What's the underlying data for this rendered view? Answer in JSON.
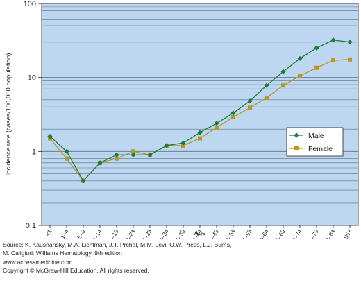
{
  "chart_data": {
    "type": "line",
    "y_scale": "log",
    "ylim": [
      0.1,
      100
    ],
    "y_ticks": [
      0.1,
      1,
      10,
      100
    ],
    "y_tick_labels": [
      "0.1",
      "1",
      "10",
      "100"
    ],
    "ylabel": "Incidence rate (cases/100,000 population)",
    "xlabel": "Age",
    "categories": [
      "<1",
      "1–4",
      "5–9",
      "10–14",
      "15–19",
      "20–24",
      "25–29",
      "30–34",
      "35–39",
      "40–44",
      "45–49",
      "50–54",
      "55–59",
      "60–64",
      "65–69",
      "70–74",
      "75–79",
      "80–84",
      "85+"
    ],
    "series": [
      {
        "name": "Male",
        "color": "#1e7a3c",
        "marker": "diamond",
        "values": [
          1.6,
          1.0,
          0.4,
          0.7,
          0.9,
          0.9,
          0.9,
          1.2,
          1.3,
          1.8,
          2.4,
          3.3,
          4.8,
          7.8,
          12,
          18,
          25,
          32,
          30
        ]
      },
      {
        "name": "Female",
        "color": "#b8962e",
        "marker": "square",
        "values": [
          1.5,
          0.8,
          0.4,
          0.7,
          0.8,
          1.0,
          0.9,
          1.2,
          1.2,
          1.5,
          2.1,
          2.9,
          3.9,
          5.3,
          7.8,
          10.5,
          13.5,
          17,
          17.5
        ]
      }
    ],
    "grid": true,
    "legend_position": "right"
  },
  "footer": {
    "line1": "Source: K. Kaushansky, M.A. Lichtman, J.T. Prchal, M.M. Levi, O.W. Press, L.J. Burns,",
    "line2": "M. Caligiuri: Williams Hematology, 9th edition",
    "line3": "www.accessmedicine.com",
    "line4": "Copyright © McGraw-Hill Education.  All rights reserved."
  },
  "colors": {
    "plot_background": "#bcd7ef",
    "gridline": "#5e6f86",
    "axis": "#231f20"
  }
}
